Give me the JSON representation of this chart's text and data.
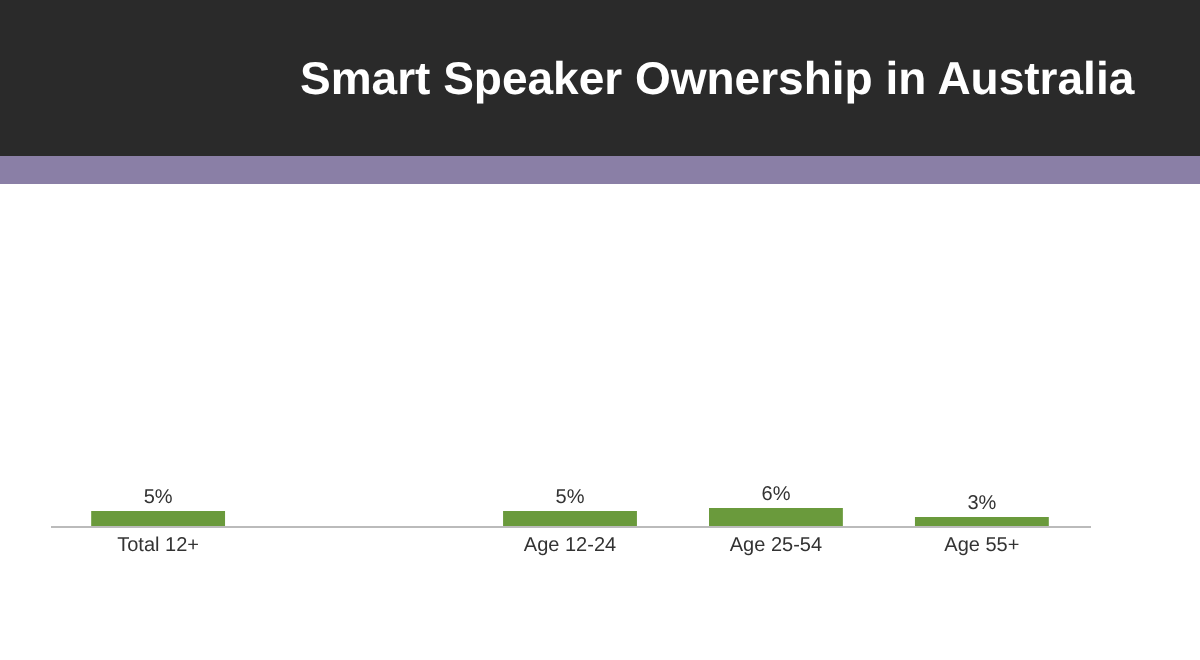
{
  "chart_data": {
    "type": "bar",
    "title": "Smart Speaker Ownership in Australia",
    "categories": [
      "Total 12+",
      null,
      "Age 12-24",
      "Age 25-54",
      "Age 55+"
    ],
    "values": [
      5,
      null,
      5,
      6,
      3
    ],
    "value_labels": [
      "5%",
      null,
      "5%",
      "6%",
      "3%"
    ],
    "color": "#6a9a3c"
  }
}
